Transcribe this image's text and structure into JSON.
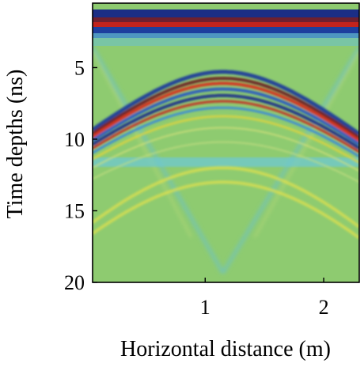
{
  "chart_data": {
    "type": "heatmap",
    "title": "",
    "xlabel": "Horizontal distance (m)",
    "ylabel": "Time depths (ns)",
    "xlim": [
      0.05,
      2.3
    ],
    "ylim": [
      20,
      0.5
    ],
    "x_ticks": [
      1,
      2
    ],
    "x_tick_labels": [
      "1",
      "2"
    ],
    "y_ticks": [
      5,
      10,
      15,
      20
    ],
    "y_tick_labels": [
      "5",
      "10",
      "15",
      "20"
    ],
    "y_inverted": true,
    "colormap": "jet",
    "background_color": "#8ecb70",
    "grid": false,
    "legend": "none",
    "features": {
      "direct_wave": {
        "time_ns": [
          1.0,
          2.1
        ],
        "colors": [
          "#1b2e86",
          "#c2231d"
        ]
      },
      "hyperbola_apex": {
        "x_m": 1.15,
        "time_ns": [
          5.5,
          6.1,
          6.9,
          7.4
        ]
      },
      "horizontal_band_time_ns": 11.6
    }
  }
}
